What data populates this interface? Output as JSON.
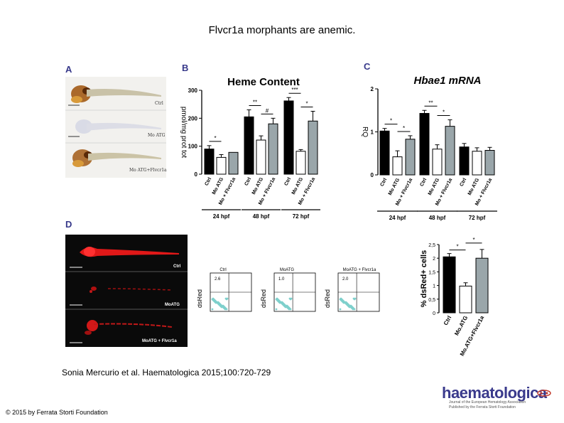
{
  "title": "Flvcr1a morphants are anemic.",
  "citation": "Sonia Mercurio et al. Haematologica 2015;100:720-729",
  "copyright": "© 2015 by Ferrata Storti Foundation",
  "logo": {
    "word": "haematologica",
    "tagline1": "Journal of the European Hematology Association",
    "tagline2": "Published by the Ferrata Storti Foundation"
  },
  "panel_letters": [
    "A",
    "B",
    "C",
    "D"
  ],
  "panel_a": {
    "labels": [
      "Ctrl",
      "Mo ATG",
      "Mo ATG+Flvcr1a"
    ]
  },
  "panel_d": {
    "image_labels": [
      "Ctrl",
      "MoATG",
      "MoATG + Flvcr1a"
    ],
    "flow_plots": [
      {
        "title": "Ctrl",
        "value": "2.6",
        "ylabel": "dsRed"
      },
      {
        "title": "MoATG",
        "value": "1.0",
        "ylabel": "dsRed"
      },
      {
        "title": "MoATG + Flvcr1a",
        "value": "2.0",
        "ylabel": "dsRed"
      }
    ]
  },
  "chart_data": [
    {
      "id": "heme",
      "type": "bar",
      "title": "Heme Content",
      "ylabel": "pmol/mg prot tot",
      "ylim": [
        0,
        300
      ],
      "yticks": [
        "0",
        "100",
        "200",
        "300"
      ],
      "categories": [
        "Ctrl",
        "Mo ATG",
        "Mo + Flvcr1a"
      ],
      "groups": [
        "24 hpf",
        "48 hpf",
        "72 hpf"
      ],
      "series": [
        {
          "group": "24 hpf",
          "values": [
            90,
            60,
            78
          ],
          "errors": [
            12,
            10,
            0
          ]
        },
        {
          "group": "48 hpf",
          "values": [
            205,
            122,
            180
          ],
          "errors": [
            25,
            15,
            20
          ]
        },
        {
          "group": "72 hpf",
          "values": [
            262,
            82,
            190
          ],
          "errors": [
            12,
            6,
            35
          ]
        }
      ],
      "significance": [
        {
          "group": 0,
          "from": 0,
          "to": 1,
          "label": "*"
        },
        {
          "group": 1,
          "from": 0,
          "to": 1,
          "label": "**"
        },
        {
          "group": 1,
          "from": 1,
          "to": 2,
          "label": "#"
        },
        {
          "group": 2,
          "from": 0,
          "to": 1,
          "label": "***"
        },
        {
          "group": 2,
          "from": 1,
          "to": 2,
          "label": "*"
        }
      ],
      "colors": [
        "#000000",
        "#ffffff",
        "#9aa6aa"
      ]
    },
    {
      "id": "hbae1",
      "type": "bar",
      "title": "Hbae1 mRNA",
      "ylabel": "RQ",
      "ylim": [
        0,
        2
      ],
      "yticks": [
        "0",
        "1",
        "2"
      ],
      "categories": [
        "Ctrl",
        "Mo ATG",
        "Mo + Flvcr1a"
      ],
      "groups": [
        "24 hpf",
        "48 hpf",
        "72 hpf"
      ],
      "series": [
        {
          "group": "24 hpf",
          "values": [
            1.02,
            0.42,
            0.83
          ],
          "errors": [
            0.06,
            0.14,
            0.08
          ]
        },
        {
          "group": "48 hpf",
          "values": [
            1.43,
            0.6,
            1.13
          ],
          "errors": [
            0.07,
            0.1,
            0.15
          ]
        },
        {
          "group": "72 hpf",
          "values": [
            0.65,
            0.55,
            0.57
          ],
          "errors": [
            0.08,
            0.08,
            0.07
          ]
        }
      ],
      "significance": [
        {
          "group": 0,
          "from": 0,
          "to": 1,
          "label": "*"
        },
        {
          "group": 0,
          "from": 1,
          "to": 2,
          "label": "*"
        },
        {
          "group": 1,
          "from": 0,
          "to": 1,
          "label": "**"
        },
        {
          "group": 1,
          "from": 1,
          "to": 2,
          "label": "*"
        }
      ],
      "colors": [
        "#000000",
        "#ffffff",
        "#9aa6aa"
      ]
    },
    {
      "id": "dsred",
      "type": "bar",
      "title": "",
      "ylabel": "% dsRed+ cells",
      "ylim": [
        0,
        2.5
      ],
      "yticks": [
        "0",
        "0,5",
        "1",
        "1,5",
        "2",
        "2,5"
      ],
      "categories": [
        "Ctrl",
        "Mo.ATG",
        "Mo.ATG+Flvcr1a"
      ],
      "values": [
        2.05,
        0.98,
        2.0
      ],
      "errors": [
        0.12,
        0.12,
        0.32
      ],
      "significance": [
        {
          "from": 0,
          "to": 1,
          "label": "*"
        },
        {
          "from": 1,
          "to": 2,
          "label": "*"
        }
      ],
      "colors": [
        "#000000",
        "#ffffff",
        "#9aa6aa"
      ]
    }
  ]
}
